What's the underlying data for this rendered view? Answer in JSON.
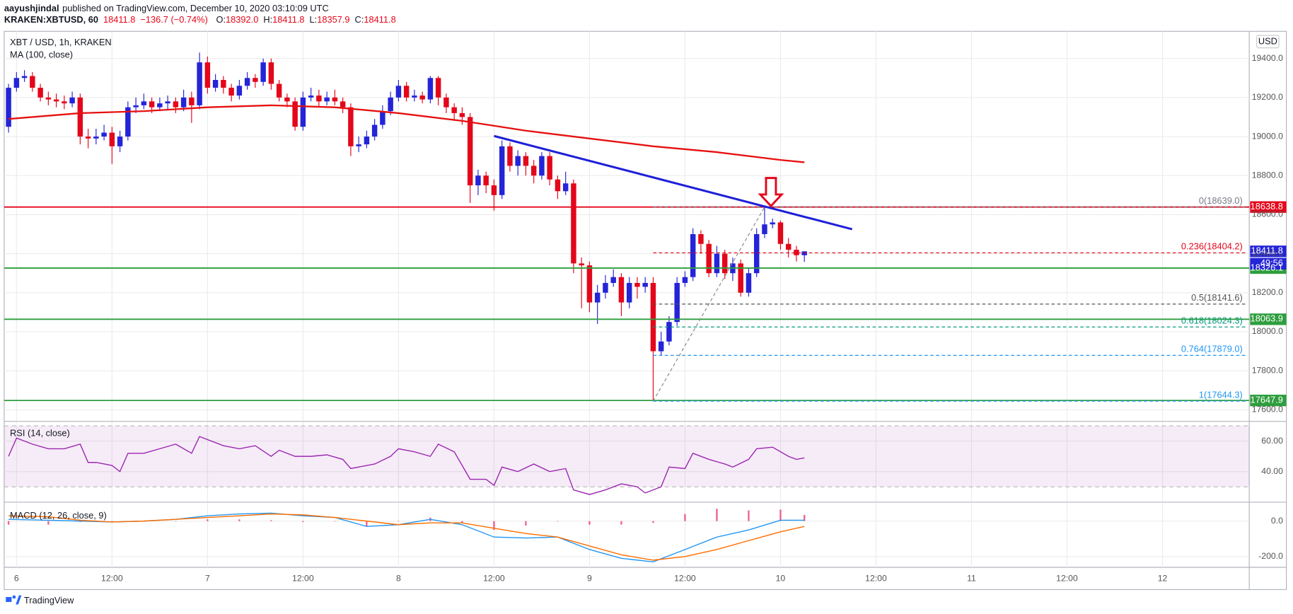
{
  "header": {
    "author": "aayushjindal",
    "published": "published on TradingView.com, December 10, 2020 03:10:09 UTC",
    "symbol": "KRAKEN:XBTUSD, 60",
    "last": "18411.8",
    "change": "−136.7 (−0.74%)",
    "ohlc": [
      {
        "label": "O:",
        "value": "18392.0"
      },
      {
        "label": "H:",
        "value": "18411.8"
      },
      {
        "label": "L:",
        "value": "18357.9"
      },
      {
        "label": "C:",
        "value": "18411.8"
      }
    ]
  },
  "currency": "USD",
  "countdown": "49:56",
  "footer": {
    "logo": "TradingView"
  },
  "chart_data": [
    {
      "type": "candlestick",
      "title": "XBT / USD, 1h, KRAKEN",
      "indicator": "MA (100, close)",
      "up_color": "#2424d8",
      "down_color": "#e4061a",
      "xlim": [
        -1.55,
        154.9
      ],
      "xticks": [
        {
          "value": 0,
          "label": "6"
        },
        {
          "value": 12,
          "label": "12:00"
        },
        {
          "value": 24,
          "label": "7"
        },
        {
          "value": 36,
          "label": "12:00"
        },
        {
          "value": 48,
          "label": "8"
        },
        {
          "value": 60,
          "label": "12:00"
        },
        {
          "value": 72,
          "label": "9"
        },
        {
          "value": 84,
          "label": "12:00"
        },
        {
          "value": 96,
          "label": "10"
        },
        {
          "value": 108,
          "label": "12:00"
        },
        {
          "value": 120,
          "label": "11"
        },
        {
          "value": 132,
          "label": "12:00"
        },
        {
          "value": 144,
          "label": "12"
        }
      ],
      "ylim": [
        17545,
        19539
      ],
      "yticks": [
        {
          "value": 17600,
          "label": "17600.0"
        },
        {
          "value": 17800,
          "label": "17800.0"
        },
        {
          "value": 18000,
          "label": "18000.0"
        },
        {
          "value": 18200,
          "label": "18200.0"
        },
        {
          "value": 18400,
          "label": "18400.0"
        },
        {
          "value": 18600,
          "label": "18600.0"
        },
        {
          "value": 18800,
          "label": "18800.0"
        },
        {
          "value": 19000,
          "label": "19000.0"
        },
        {
          "value": 19200,
          "label": "19200.0"
        },
        {
          "value": 19400,
          "label": "19400.0"
        }
      ],
      "x": [
        -1,
        0,
        1,
        2,
        3,
        4,
        5,
        6,
        7,
        8,
        9,
        10,
        11,
        12,
        13,
        14,
        15,
        16,
        17,
        18,
        19,
        20,
        21,
        22,
        23,
        24,
        25,
        26,
        27,
        28,
        29,
        30,
        31,
        32,
        33,
        34,
        35,
        36,
        37,
        38,
        39,
        40,
        41,
        42,
        43,
        44,
        45,
        46,
        47,
        48,
        49,
        50,
        51,
        52,
        53,
        54,
        55,
        56,
        57,
        58,
        59,
        60,
        61,
        62,
        63,
        64,
        65,
        66,
        67,
        68,
        69,
        70,
        71,
        72,
        73,
        74,
        75,
        76,
        77,
        78,
        79,
        80,
        81,
        82,
        83,
        84,
        85,
        86,
        87,
        88,
        89,
        90,
        91,
        92,
        93,
        94,
        95,
        96,
        97,
        98,
        99
      ],
      "candles": [
        [
          19050,
          19270,
          19020,
          19250
        ],
        [
          19250,
          19330,
          19230,
          19300
        ],
        [
          19300,
          19340,
          19280,
          19310
        ],
        [
          19310,
          19330,
          19230,
          19250
        ],
        [
          19250,
          19270,
          19180,
          19200
        ],
        [
          19200,
          19230,
          19160,
          19190
        ],
        [
          19190,
          19220,
          19150,
          19180
        ],
        [
          19180,
          19210,
          19140,
          19170
        ],
        [
          19170,
          19230,
          19150,
          19200
        ],
        [
          19200,
          19220,
          18960,
          19000
        ],
        [
          19000,
          19040,
          18940,
          18990
        ],
        [
          18990,
          19040,
          18960,
          19000
        ],
        [
          19000,
          19060,
          18980,
          19020
        ],
        [
          19020,
          19050,
          18860,
          18950
        ],
        [
          18950,
          19030,
          18920,
          19000
        ],
        [
          19000,
          19180,
          18980,
          19150
        ],
        [
          19150,
          19200,
          19120,
          19160
        ],
        [
          19160,
          19220,
          19140,
          19180
        ],
        [
          19180,
          19200,
          19120,
          19150
        ],
        [
          19150,
          19200,
          19130,
          19170
        ],
        [
          19170,
          19210,
          19140,
          19180
        ],
        [
          19180,
          19200,
          19120,
          19150
        ],
        [
          19150,
          19240,
          19130,
          19200
        ],
        [
          19200,
          19230,
          19070,
          19160
        ],
        [
          19160,
          19430,
          19140,
          19380
        ],
        [
          19380,
          19410,
          19220,
          19250
        ],
        [
          19250,
          19320,
          19230,
          19290
        ],
        [
          19290,
          19310,
          19220,
          19250
        ],
        [
          19250,
          19270,
          19180,
          19210
        ],
        [
          19210,
          19290,
          19190,
          19260
        ],
        [
          19260,
          19330,
          19240,
          19300
        ],
        [
          19300,
          19320,
          19250,
          19280
        ],
        [
          19280,
          19400,
          19260,
          19380
        ],
        [
          19380,
          19400,
          19240,
          19270
        ],
        [
          19270,
          19290,
          19180,
          19200
        ],
        [
          19200,
          19220,
          19150,
          19180
        ],
        [
          19180,
          19200,
          19030,
          19050
        ],
        [
          19050,
          19230,
          19030,
          19200
        ],
        [
          19200,
          19250,
          19180,
          19210
        ],
        [
          19210,
          19240,
          19150,
          19180
        ],
        [
          19180,
          19230,
          19160,
          19200
        ],
        [
          19200,
          19240,
          19160,
          19180
        ],
        [
          19180,
          19200,
          19120,
          19150
        ],
        [
          19150,
          19170,
          18900,
          18950
        ],
        [
          18950,
          19000,
          18920,
          18960
        ],
        [
          18960,
          19030,
          18940,
          19000
        ],
        [
          19000,
          19090,
          18980,
          19060
        ],
        [
          19060,
          19160,
          19040,
          19130
        ],
        [
          19130,
          19230,
          19110,
          19200
        ],
        [
          19200,
          19290,
          19180,
          19260
        ],
        [
          19260,
          19280,
          19180,
          19200
        ],
        [
          19200,
          19240,
          19180,
          19210
        ],
        [
          19210,
          19230,
          19170,
          19190
        ],
        [
          19190,
          19310,
          19170,
          19300
        ],
        [
          19300,
          19310,
          19160,
          19200
        ],
        [
          19200,
          19220,
          19120,
          19150
        ],
        [
          19150,
          19170,
          19080,
          19120
        ],
        [
          19120,
          19150,
          19060,
          19100
        ],
        [
          19100,
          19120,
          18660,
          18750
        ],
        [
          18750,
          18830,
          18700,
          18800
        ],
        [
          18800,
          18820,
          18710,
          18750
        ],
        [
          18750,
          18780,
          18620,
          18700
        ],
        [
          18700,
          18980,
          18680,
          18950
        ],
        [
          18950,
          18970,
          18820,
          18850
        ],
        [
          18850,
          18930,
          18800,
          18900
        ],
        [
          18900,
          18920,
          18800,
          18850
        ],
        [
          18850,
          18880,
          18760,
          18800
        ],
        [
          18800,
          18920,
          18780,
          18900
        ],
        [
          18900,
          18920,
          18750,
          18780
        ],
        [
          18780,
          18800,
          18680,
          18720
        ],
        [
          18720,
          18820,
          18700,
          18760
        ],
        [
          18760,
          18780,
          18300,
          18350
        ],
        [
          18350,
          18380,
          18120,
          18340
        ],
        [
          18340,
          18360,
          18100,
          18150
        ],
        [
          18150,
          18240,
          18040,
          18200
        ],
        [
          18200,
          18290,
          18170,
          18250
        ],
        [
          18250,
          18320,
          18230,
          18280
        ],
        [
          18280,
          18300,
          18080,
          18150
        ],
        [
          18150,
          18280,
          18120,
          18250
        ],
        [
          18250,
          18280,
          18170,
          18230
        ],
        [
          18230,
          18280,
          18200,
          18250
        ],
        [
          18250,
          18280,
          17644.3,
          17900
        ],
        [
          17900,
          18000,
          17880,
          17950
        ],
        [
          17950,
          18080,
          17930,
          18050
        ],
        [
          18050,
          18280,
          18030,
          18250
        ],
        [
          18250,
          18310,
          18230,
          18280
        ],
        [
          18280,
          18530,
          18260,
          18500
        ],
        [
          18500,
          18520,
          18400,
          18450
        ],
        [
          18450,
          18470,
          18280,
          18300
        ],
        [
          18300,
          18440,
          18280,
          18400
        ],
        [
          18400,
          18420,
          18270,
          18300
        ],
        [
          18300,
          18380,
          18260,
          18350
        ],
        [
          18350,
          18370,
          18180,
          18200
        ],
        [
          18200,
          18330,
          18180,
          18300
        ],
        [
          18300,
          18530,
          18280,
          18500
        ],
        [
          18500,
          18639,
          18480,
          18550
        ],
        [
          18550,
          18580,
          18530,
          18560
        ],
        [
          18560,
          18570,
          18420,
          18450
        ],
        [
          18450,
          18480,
          18380,
          18420
        ],
        [
          18420,
          18440,
          18360,
          18392
        ],
        [
          18392,
          18411.8,
          18357.9,
          18411.8
        ]
      ],
      "ma": {
        "color": "#e61010",
        "x": [
          -1,
          8,
          16,
          24,
          32,
          40,
          48,
          56,
          64,
          72,
          80,
          88,
          96,
          99
        ],
        "values": [
          19090,
          19120,
          19130,
          19150,
          19160,
          19150,
          19120,
          19080,
          19030,
          18990,
          18950,
          18920,
          18880,
          18868
        ]
      },
      "trendline": {
        "color": "#1d20d8",
        "x": [
          60,
          105
        ],
        "values": [
          19003,
          18525
        ]
      },
      "fib_diagonal": {
        "color": "#888888",
        "x": [
          80,
          94
        ],
        "values": [
          17644.3,
          18639
        ]
      },
      "arrow": {
        "color": "#e4061a",
        "x": 94.8,
        "value": 18644
      },
      "last_color": "#2424d8",
      "levels": [
        {
          "value": 18638.8,
          "color": "#e4061a"
        },
        {
          "value": 18326.1,
          "color": "#2e9e3e"
        },
        {
          "value": 18063.9,
          "color": "#2e9e3e"
        },
        {
          "value": 17647.9,
          "color": "#2e9e3e"
        }
      ],
      "fib": {
        "start": 80,
        "levels": [
          {
            "value": 18639.0,
            "label": "0(18639.0)",
            "color": "#787b86"
          },
          {
            "value": 18404.2,
            "label": "0.236(18404.2)",
            "color": "#e4061a"
          },
          {
            "value": 18141.6,
            "label": "0.5(18141.6)",
            "color": "#555555"
          },
          {
            "value": 18024.3,
            "label": "0.618(18024.3)",
            "color": "#089981"
          },
          {
            "value": 17879.0,
            "label": "0.764(17879.0)",
            "color": "#2196f3"
          },
          {
            "value": 17644.3,
            "label": "1(17644.3)",
            "color": "#2196f3"
          }
        ]
      }
    },
    {
      "type": "line",
      "title": "RSI (14, close)",
      "ylim": [
        20.5,
        72.4
      ],
      "yticks": [
        {
          "value": 40,
          "label": "40.00"
        },
        {
          "value": 60,
          "label": "60.00"
        }
      ],
      "band": [
        30,
        70
      ],
      "band_color": "#9c27b0",
      "series": [
        {
          "color": "#9c27b0",
          "x": [
            -1,
            0,
            2,
            4,
            6,
            8,
            9,
            10,
            12,
            13,
            14,
            16,
            18,
            20,
            22,
            23,
            26,
            28,
            30,
            32,
            33,
            35,
            37,
            39,
            41,
            42,
            45,
            47,
            48,
            50,
            52,
            53,
            55,
            57,
            59,
            60,
            61,
            63,
            65,
            67,
            69,
            70,
            72,
            74,
            76,
            78,
            79,
            81,
            82,
            84,
            85,
            87,
            89,
            90,
            92,
            93,
            95,
            97,
            98,
            99
          ],
          "values": [
            50,
            62,
            58,
            55,
            55,
            58,
            46,
            46,
            44,
            40,
            52,
            52,
            55,
            58,
            52,
            63,
            57,
            55,
            57,
            50,
            54,
            50,
            50,
            51,
            48,
            42,
            45,
            50,
            55,
            53,
            50,
            58,
            53,
            35,
            35,
            31,
            43,
            40,
            45,
            40,
            42,
            28,
            25,
            28,
            32,
            30,
            26,
            30,
            43,
            42,
            52,
            48,
            45,
            43,
            48,
            55,
            56,
            50,
            48,
            49
          ]
        }
      ]
    },
    {
      "type": "macd",
      "title": "MACD (12, 26, close, 9)",
      "ylim": [
        -260.5,
        102
      ],
      "yticks": [
        {
          "value": 0,
          "label": "0.0"
        },
        {
          "value": -200,
          "label": "-200.0"
        }
      ],
      "x": [
        -1,
        4,
        8,
        12,
        16,
        20,
        24,
        28,
        32,
        36,
        40,
        44,
        48,
        52,
        56,
        60,
        64,
        68,
        72,
        76,
        80,
        84,
        88,
        92,
        96,
        99
      ],
      "histogram": {
        "color": "#e91e63",
        "values": [
          -20,
          -20,
          -5,
          0,
          0,
          0,
          10,
          10,
          5,
          -5,
          0,
          -30,
          0,
          20,
          -10,
          -50,
          -25,
          0,
          -20,
          -20,
          -10,
          40,
          70,
          60,
          65,
          35
        ]
      },
      "macd": {
        "color": "#2196f3",
        "values": [
          10,
          5,
          0,
          -5,
          0,
          10,
          30,
          40,
          45,
          30,
          20,
          -30,
          -20,
          10,
          -20,
          -90,
          -95,
          -90,
          -160,
          -210,
          -230,
          -160,
          -90,
          -50,
          5,
          5
        ]
      },
      "signal": {
        "color": "#ff6d00",
        "values": [
          30,
          25,
          5,
          -5,
          0,
          10,
          20,
          30,
          40,
          35,
          20,
          0,
          -20,
          -10,
          -10,
          -40,
          -70,
          -90,
          -140,
          -190,
          -220,
          -200,
          -160,
          -110,
          -60,
          -30
        ]
      }
    }
  ]
}
